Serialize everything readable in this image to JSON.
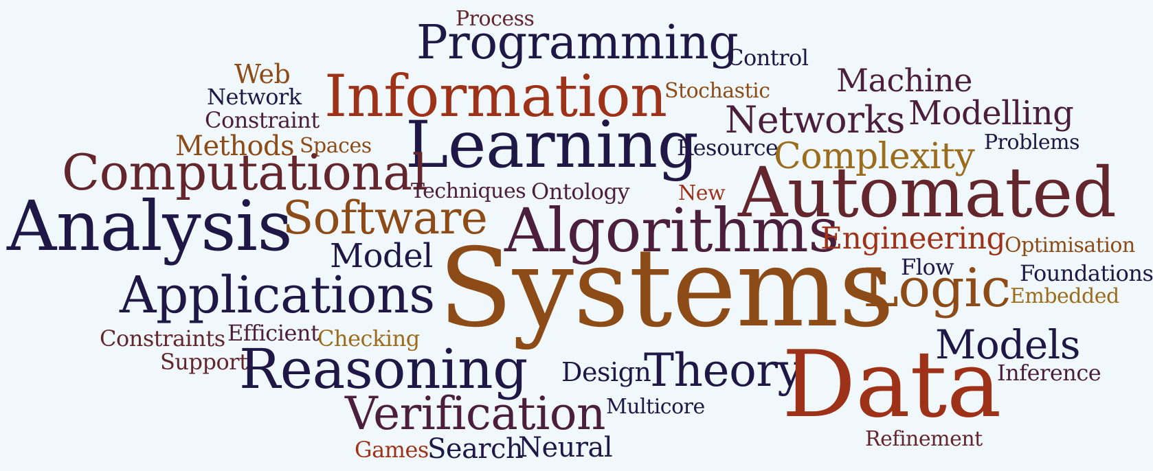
{
  "palette": {
    "background": "#f0f8fc",
    "navy": "#1f1745",
    "plum": "#4b1f3b",
    "maroon": "#63262c",
    "rust": "#9e3218",
    "brown": "#8d4b17",
    "amber": "#9a6c1c"
  },
  "words": {
    "systems": "Systems",
    "data": "Data",
    "automated": "Automated",
    "algorithms": "Algorithms",
    "analysis": "Analysis",
    "learning": "Learning",
    "information": "Information",
    "computational": "Computational",
    "programming": "Programming",
    "reasoning": "Reasoning",
    "applications": "Applications",
    "logic": "Logic",
    "software": "Software",
    "verification": "Verification",
    "theory": "Theory",
    "models": "Models",
    "complexity": "Complexity",
    "networks": "Networks",
    "modelling": "Modelling",
    "machine": "Machine",
    "engineering": "Engineering",
    "model": "Model",
    "methods": "Methods",
    "web": "Web",
    "process": "Process",
    "control": "Control",
    "network": "Network",
    "constraint": "Constraint",
    "stochastic": "Stochastic",
    "spaces": "Spaces",
    "resource": "Resource",
    "problems": "Problems",
    "techniques": "Techniques",
    "ontology": "Ontology",
    "new": "New",
    "optimisation": "Optimisation",
    "flow": "Flow",
    "foundations": "Foundations",
    "embedded": "Embedded",
    "constraints": "Constraints",
    "efficient": "Efficient",
    "checking": "Checking",
    "support": "Support",
    "design": "Design",
    "inference": "Inference",
    "multicore": "Multicore",
    "games": "Games",
    "search": "Search",
    "neural": "Neural",
    "refinement": "Refinement"
  }
}
